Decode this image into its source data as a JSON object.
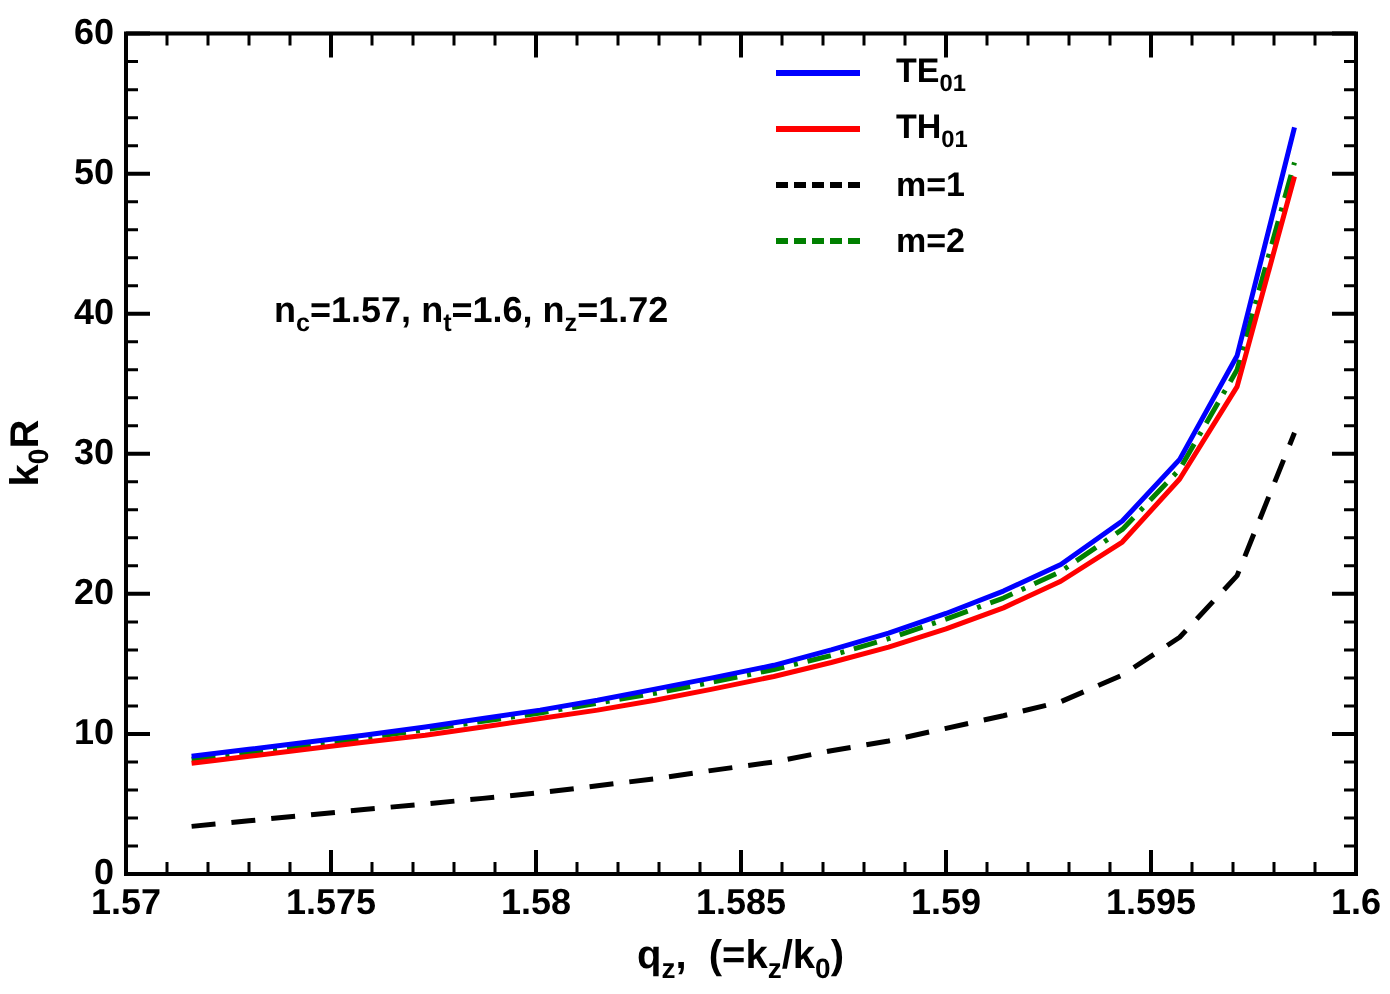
{
  "chart_data": {
    "type": "line",
    "xlabel": "q$_{z}$,  (=k$_{z}$/k$_{0}$)",
    "ylabel": "k$_{0}$R",
    "x": [
      1.5716,
      1.573,
      1.5744,
      1.5758,
      1.5773,
      1.5787,
      1.5801,
      1.5815,
      1.5829,
      1.5843,
      1.5858,
      1.5872,
      1.5886,
      1.59,
      1.5914,
      1.5928,
      1.5943,
      1.5957,
      1.5971,
      1.5985
    ],
    "series": [
      {
        "name": "TE$_{01}$",
        "color": "#0000ff",
        "line_style": "solid",
        "values": [
          8.4,
          8.9,
          9.4,
          9.9,
          10.5,
          11.1,
          11.7,
          12.4,
          13.2,
          14.0,
          14.9,
          16.0,
          17.2,
          18.6,
          20.2,
          22.1,
          25.2,
          29.6,
          37.0,
          53.3
        ]
      },
      {
        "name": "TH$_{01}$",
        "color": "#ff0000",
        "line_style": "solid",
        "values": [
          7.9,
          8.4,
          8.9,
          9.4,
          9.9,
          10.5,
          11.1,
          11.7,
          12.4,
          13.2,
          14.1,
          15.1,
          16.2,
          17.5,
          19.0,
          20.9,
          23.7,
          28.2,
          34.8,
          49.8
        ]
      },
      {
        "name": "m=1",
        "color": "#000000",
        "line_style": "dashed",
        "values": [
          3.4,
          3.8,
          4.2,
          4.6,
          5.0,
          5.4,
          5.8,
          6.3,
          6.8,
          7.4,
          8.0,
          8.8,
          9.5,
          10.4,
          11.3,
          12.3,
          14.2,
          16.9,
          21.3,
          31.5
        ]
      },
      {
        "name": "m=2",
        "color": "#008000",
        "line_style": "dashdot",
        "values": [
          8.2,
          8.7,
          9.2,
          9.7,
          10.3,
          10.9,
          11.5,
          12.2,
          12.9,
          13.7,
          14.6,
          15.6,
          16.8,
          18.2,
          19.7,
          21.6,
          24.6,
          28.9,
          36.0,
          50.8
        ]
      }
    ],
    "xlim": [
      1.57,
      1.6
    ],
    "xticks": [
      1.57,
      1.575,
      1.58,
      1.585,
      1.59,
      1.595,
      1.6
    ],
    "ylim": [
      0,
      60
    ],
    "yticks": [
      0,
      10,
      20,
      30,
      40,
      50,
      60
    ],
    "grid": false,
    "legend": "top right",
    "marker": "none",
    "annotations": [
      "n$_{c}$=1.57, n$_{t}$=1.6, n$_{z}$=1.72"
    ]
  }
}
